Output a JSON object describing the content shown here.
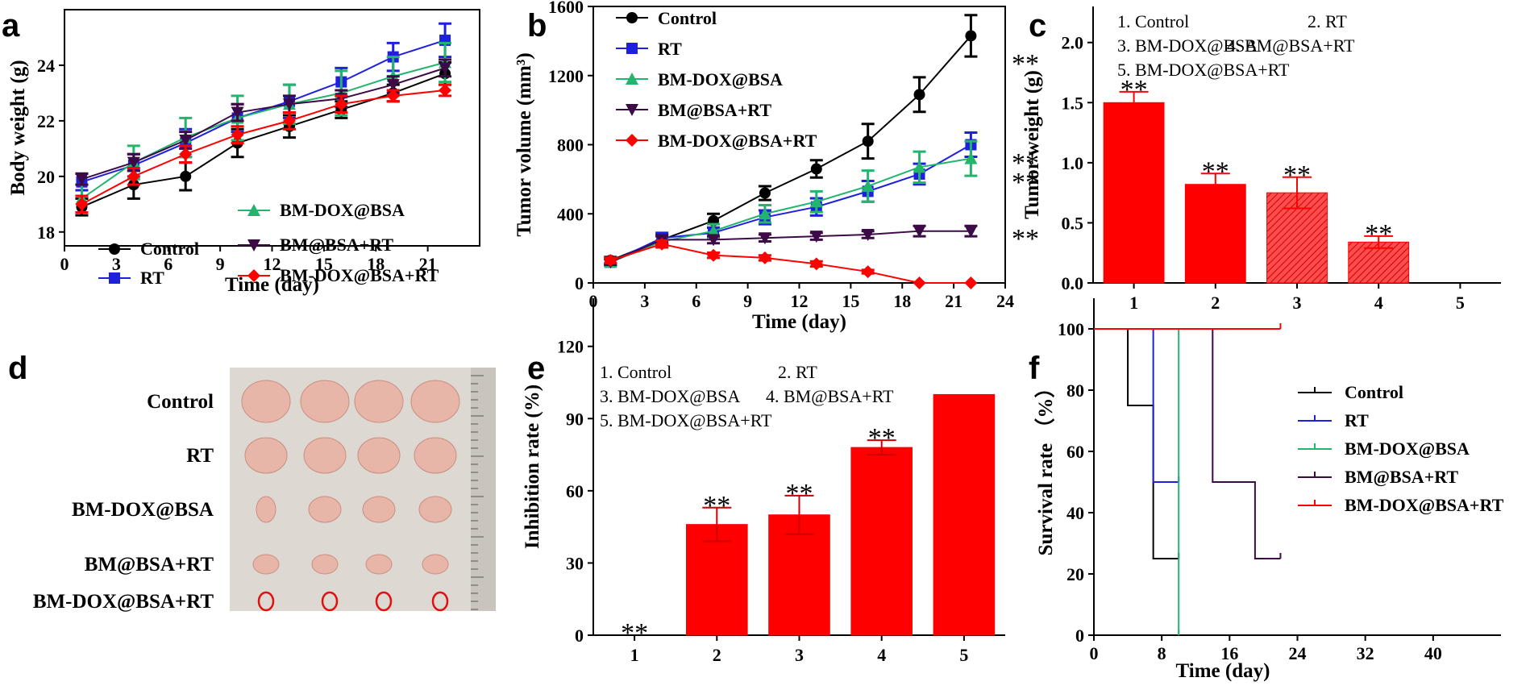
{
  "chart_data": [
    {
      "panel": "a",
      "type": "line",
      "xlabel": "Time (day)",
      "ylabel": "Body weight (g)",
      "xlim": [
        0,
        24
      ],
      "ylim": [
        17.5,
        26
      ],
      "xticks": [
        0,
        3,
        6,
        9,
        12,
        15,
        18,
        21
      ],
      "yticks": [
        18,
        20,
        22,
        24
      ],
      "x": [
        1,
        4,
        7,
        10,
        13,
        16,
        19,
        22
      ],
      "series": [
        {
          "name": "Control",
          "color": "#000000",
          "marker": "circle",
          "values": [
            18.9,
            19.7,
            20.0,
            21.2,
            21.8,
            22.4,
            23.0,
            23.7
          ],
          "err": [
            0.3,
            0.5,
            0.5,
            0.5,
            0.4,
            0.3,
            0.3,
            0.4
          ]
        },
        {
          "name": "RT",
          "color": "#1f1fe0",
          "marker": "square",
          "values": [
            19.8,
            20.4,
            21.2,
            22.1,
            22.7,
            23.4,
            24.3,
            24.9
          ],
          "err": [
            0.3,
            0.4,
            0.5,
            0.5,
            0.6,
            0.5,
            0.5,
            0.6
          ]
        },
        {
          "name": "BM-DOX@BSA",
          "color": "#23b46e",
          "marker": "triangle",
          "values": [
            19.2,
            20.5,
            21.4,
            22.1,
            22.6,
            23.0,
            23.6,
            24.1
          ],
          "err": [
            0.5,
            0.6,
            0.7,
            0.8,
            0.7,
            0.8,
            0.7,
            0.7
          ]
        },
        {
          "name": "BM@BSA+RT",
          "color": "#3c0a46",
          "marker": "triangle-down",
          "values": [
            19.9,
            20.5,
            21.3,
            22.3,
            22.6,
            22.8,
            23.3,
            23.9
          ],
          "err": [
            0.2,
            0.3,
            0.3,
            0.3,
            0.3,
            0.3,
            0.3,
            0.3
          ]
        },
        {
          "name": "BM-DOX@BSA+RT",
          "color": "#ff0000",
          "marker": "diamond",
          "values": [
            19.0,
            20.0,
            20.8,
            21.5,
            22.0,
            22.6,
            22.9,
            23.1
          ],
          "err": [
            0.3,
            0.3,
            0.3,
            0.3,
            0.3,
            0.3,
            0.2,
            0.2
          ]
        }
      ]
    },
    {
      "panel": "b",
      "type": "line",
      "xlabel": "Time (day)",
      "ylabel": "Tumor volume (mm³)",
      "xlim": [
        0,
        24
      ],
      "ylim": [
        0,
        1600
      ],
      "xticks": [
        0,
        3,
        6,
        9,
        12,
        15,
        18,
        21,
        24
      ],
      "yticks": [
        0,
        400,
        800,
        1200,
        1600
      ],
      "x": [
        1,
        4,
        7,
        10,
        13,
        16,
        19,
        22
      ],
      "series": [
        {
          "name": "Control",
          "color": "#000000",
          "marker": "circle",
          "values": [
            130,
            250,
            360,
            520,
            660,
            820,
            1090,
            1430
          ],
          "err": [
            20,
            30,
            40,
            40,
            50,
            100,
            100,
            120
          ]
        },
        {
          "name": "RT",
          "color": "#1f1fe0",
          "marker": "square",
          "values": [
            120,
            260,
            290,
            380,
            440,
            530,
            630,
            800
          ],
          "err": [
            20,
            30,
            30,
            40,
            50,
            60,
            60,
            70
          ]
        },
        {
          "name": "BM-DOX@BSA",
          "color": "#23b46e",
          "marker": "triangle",
          "values": [
            120,
            240,
            300,
            400,
            470,
            560,
            670,
            720
          ],
          "err": [
            20,
            30,
            40,
            50,
            60,
            90,
            90,
            100
          ]
        },
        {
          "name": "BM@BSA+RT",
          "color": "#3c0a46",
          "marker": "triangle-down",
          "values": [
            120,
            250,
            250,
            260,
            270,
            280,
            300,
            300
          ],
          "err": [
            15,
            20,
            20,
            20,
            20,
            20,
            30,
            30
          ]
        },
        {
          "name": "BM-DOX@BSA+RT",
          "color": "#ff0000",
          "marker": "diamond",
          "values": [
            130,
            225,
            160,
            145,
            110,
            65,
            0,
            0
          ],
          "err": [
            15,
            20,
            15,
            15,
            15,
            10,
            0,
            0
          ]
        }
      ],
      "annotations": [
        "**",
        "**",
        "**",
        "**"
      ]
    },
    {
      "panel": "c",
      "type": "bar",
      "ylabel": "Tumor weight (g)",
      "ylim": [
        0,
        2.3
      ],
      "yticks": [
        0.0,
        0.5,
        1.0,
        1.5,
        2.0
      ],
      "yticklabels": [
        "0.0",
        "0.5",
        "1.0",
        "1.5",
        "2.0"
      ],
      "categories": [
        "1",
        "2",
        "3",
        "4",
        "5"
      ],
      "values": [
        1.5,
        0.82,
        0.75,
        0.34,
        0
      ],
      "err": [
        0.09,
        0.09,
        0.13,
        0.05,
        0
      ],
      "annotations": [
        "**",
        "**",
        "**",
        "**"
      ],
      "legend": [
        "1. Control",
        "2. RT",
        "3. BM-DOX@BSA",
        "4. BM@BSA+RT",
        "5. BM-DOX@BSA+RT"
      ]
    },
    {
      "panel": "e",
      "type": "bar",
      "ylabel": "Inhibition rate (%)",
      "ylim": [
        0,
        140
      ],
      "yticks": [
        0,
        30,
        60,
        90,
        120
      ],
      "categories": [
        "1",
        "2",
        "3",
        "4",
        "5"
      ],
      "values": [
        0,
        46,
        50,
        78,
        100
      ],
      "err": [
        0,
        7,
        8,
        3,
        0
      ],
      "annotations": [
        "**",
        "**",
        "**",
        "**"
      ],
      "legend": [
        "1. Control",
        "2. RT",
        "3. BM-DOX@BSA",
        "4. BM@BSA+RT",
        "5. BM-DOX@BSA+RT"
      ]
    },
    {
      "panel": "f",
      "type": "line",
      "xlabel": "Time (day)",
      "ylabel": "Survival rate （%）",
      "xlim": [
        0,
        48
      ],
      "ylim": [
        0,
        110
      ],
      "xticks": [
        0,
        8,
        16,
        24,
        32,
        40
      ],
      "yticks": [
        0,
        20,
        40,
        60,
        80,
        100
      ],
      "series": [
        {
          "name": "Control",
          "color": "#000000",
          "x": [
            0,
            4,
            4,
            7,
            7,
            10
          ],
          "values": [
            100,
            100,
            75,
            75,
            25,
            25
          ]
        },
        {
          "name": "RT",
          "color": "#1f1fe0",
          "x": [
            0,
            7,
            7,
            10
          ],
          "values": [
            100,
            100,
            50,
            50
          ]
        },
        {
          "name": "BM-DOX@BSA",
          "color": "#23b46e",
          "x": [
            0,
            10,
            10
          ],
          "values": [
            100,
            100,
            0
          ]
        },
        {
          "name": "BM@BSA+RT",
          "color": "#3c0a46",
          "x": [
            0,
            14,
            14,
            19,
            19,
            22
          ],
          "values": [
            100,
            100,
            50,
            50,
            25,
            25
          ]
        },
        {
          "name": "BM-DOX@BSA+RT",
          "color": "#ff0000",
          "x": [
            0,
            22
          ],
          "values": [
            100,
            100
          ]
        }
      ]
    }
  ],
  "panel_labels": [
    "a",
    "b",
    "c",
    "d",
    "e",
    "f"
  ],
  "photo": {
    "rows": [
      "Control",
      "RT",
      "BM-DOX@BSA",
      "BM@BSA+RT",
      "BM-DOX@BSA+RT"
    ],
    "tumor_counts": [
      4,
      4,
      4,
      4,
      0
    ],
    "colors": {
      "background": "#ddd9d2",
      "tumor": "#e8b6a8",
      "circle": "#e01010"
    }
  }
}
